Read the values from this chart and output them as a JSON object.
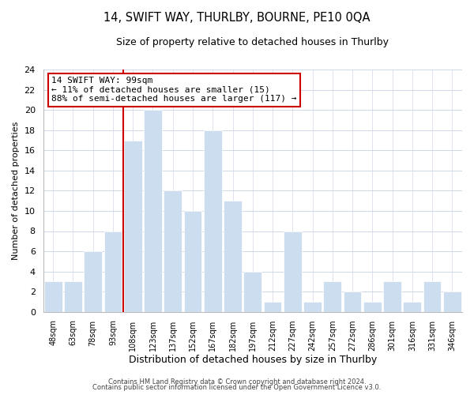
{
  "title": "14, SWIFT WAY, THURLBY, BOURNE, PE10 0QA",
  "subtitle": "Size of property relative to detached houses in Thurlby",
  "xlabel": "Distribution of detached houses by size in Thurlby",
  "ylabel": "Number of detached properties",
  "bar_labels": [
    "48sqm",
    "63sqm",
    "78sqm",
    "93sqm",
    "108sqm",
    "123sqm",
    "137sqm",
    "152sqm",
    "167sqm",
    "182sqm",
    "197sqm",
    "212sqm",
    "227sqm",
    "242sqm",
    "257sqm",
    "272sqm",
    "286sqm",
    "301sqm",
    "316sqm",
    "331sqm",
    "346sqm"
  ],
  "bar_values": [
    3,
    3,
    6,
    8,
    17,
    20,
    12,
    10,
    18,
    11,
    4,
    1,
    8,
    1,
    3,
    2,
    1,
    3,
    1,
    3,
    2
  ],
  "bar_color": "#ccddf0",
  "bar_edge_color": "#ffffff",
  "highlight_bar_index": 4,
  "highlight_color": "#cc0000",
  "annotation_title": "14 SWIFT WAY: 99sqm",
  "annotation_line1": "← 11% of detached houses are smaller (15)",
  "annotation_line2": "88% of semi-detached houses are larger (117) →",
  "annotation_box_color": "#ffffff",
  "annotation_box_edge": "#cc0000",
  "ylim": [
    0,
    24
  ],
  "yticks": [
    0,
    2,
    4,
    6,
    8,
    10,
    12,
    14,
    16,
    18,
    20,
    22,
    24
  ],
  "footer_line1": "Contains HM Land Registry data © Crown copyright and database right 2024.",
  "footer_line2": "Contains public sector information licensed under the Open Government Licence v3.0.",
  "bg_color": "#ffffff",
  "grid_color": "#d0d8e8"
}
